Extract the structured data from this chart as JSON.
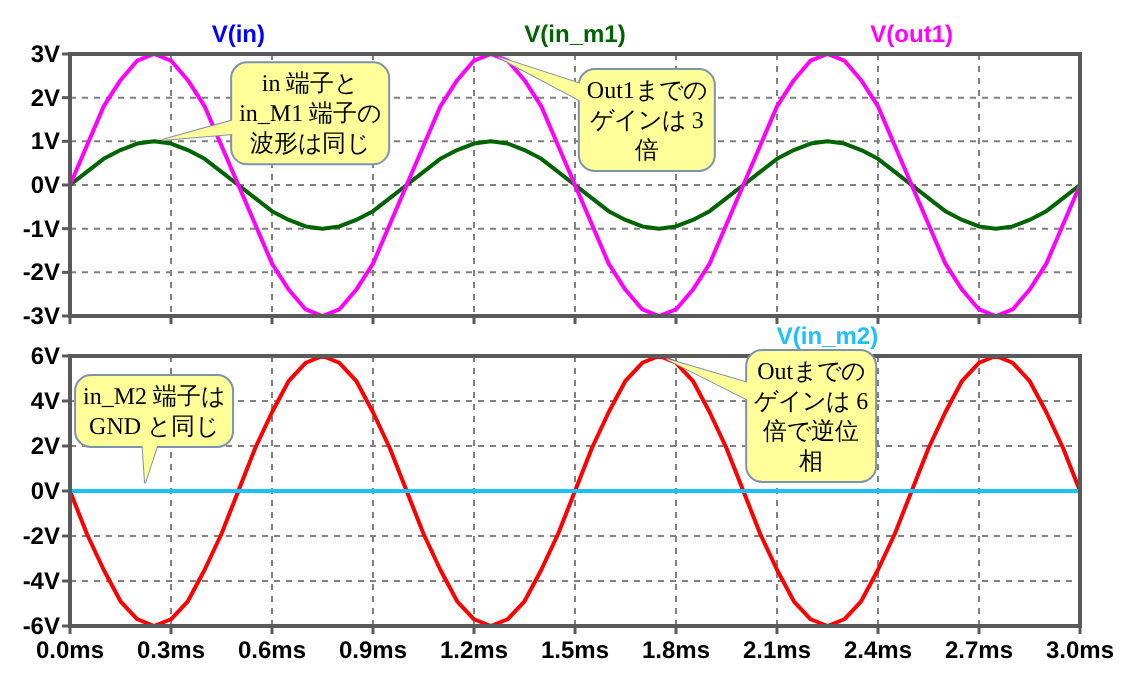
{
  "chart_data": [
    {
      "type": "line",
      "legend": "top",
      "grid": true,
      "tick_labels": "y",
      "x": [
        0,
        0.05,
        0.1,
        0.15,
        0.2,
        0.25,
        0.3,
        0.35,
        0.4,
        0.45,
        0.5,
        0.55,
        0.6,
        0.65,
        0.7,
        0.75,
        0.8,
        0.85,
        0.9,
        0.95,
        1,
        1.05,
        1.1,
        1.15,
        1.2,
        1.25,
        1.3,
        1.35,
        1.4,
        1.45,
        1.5,
        1.55,
        1.6,
        1.65,
        1.7,
        1.75,
        1.8,
        1.85,
        1.9,
        1.95,
        2,
        2.05,
        2.1,
        2.15,
        2.2,
        2.25,
        2.3,
        2.35,
        2.4,
        2.45,
        2.5,
        2.55,
        2.6,
        2.65,
        2.7,
        2.75,
        2.8,
        2.85,
        2.9,
        2.95,
        3
      ],
      "xlim": [
        0,
        3
      ],
      "xticks": [
        0,
        0.3,
        0.6,
        0.9,
        1.2,
        1.5,
        1.8,
        2.1,
        2.4,
        2.7,
        3
      ],
      "ylim": [
        -3,
        3
      ],
      "yticks": [
        {
          "value": -3,
          "label": "-3V"
        },
        {
          "value": -2,
          "label": "-2V"
        },
        {
          "value": -1,
          "label": "-1V"
        },
        {
          "value": 0,
          "label": "0V"
        },
        {
          "value": 1,
          "label": "1V"
        },
        {
          "value": 2,
          "label": "2V"
        },
        {
          "value": 3,
          "label": "3V"
        }
      ],
      "series": [
        {
          "name": "V(in)",
          "color": "#0000ff",
          "values": [
            null,
            null,
            null,
            null,
            null,
            null,
            null,
            null,
            null,
            null,
            null,
            null,
            null,
            null,
            null,
            null,
            null,
            null,
            null,
            null,
            null,
            null,
            null,
            null,
            null,
            null,
            null,
            null,
            null,
            null,
            null,
            null,
            null,
            null,
            null,
            null,
            null,
            null,
            null,
            null,
            null,
            null,
            null,
            null,
            null,
            null,
            null,
            null,
            null,
            null,
            null,
            null,
            null,
            null,
            null,
            null,
            null,
            null,
            null,
            null,
            null
          ]
        },
        {
          "name": "V(in_m1)",
          "color": "#006400",
          "values": [
            0,
            0.3,
            0.6,
            0.8,
            0.95,
            1,
            0.95,
            0.8,
            0.6,
            0.3,
            0,
            -0.3,
            -0.6,
            -0.8,
            -0.95,
            -1,
            -0.95,
            -0.8,
            -0.6,
            -0.3,
            0,
            0.3,
            0.6,
            0.8,
            0.95,
            1,
            0.95,
            0.8,
            0.6,
            0.3,
            0,
            -0.3,
            -0.6,
            -0.8,
            -0.95,
            -1,
            -0.95,
            -0.8,
            -0.6,
            -0.3,
            0,
            0.3,
            0.6,
            0.8,
            0.95,
            1,
            0.95,
            0.8,
            0.6,
            0.3,
            0,
            -0.3,
            -0.6,
            -0.8,
            -0.95,
            -1,
            -0.95,
            -0.8,
            -0.6,
            -0.3,
            0
          ]
        },
        {
          "name": "V(out1)",
          "color": "#ff00ff",
          "values": [
            0,
            0.9,
            1.8,
            2.4,
            2.85,
            3,
            2.85,
            2.4,
            1.8,
            0.9,
            0,
            -0.9,
            -1.8,
            -2.4,
            -2.85,
            -3,
            -2.85,
            -2.4,
            -1.8,
            -0.9,
            0,
            0.9,
            1.8,
            2.4,
            2.85,
            3,
            2.85,
            2.4,
            1.8,
            0.9,
            0,
            -0.9,
            -1.8,
            -2.4,
            -2.85,
            -3,
            -2.85,
            -2.4,
            -1.8,
            -0.9,
            0,
            0.9,
            1.8,
            2.4,
            2.85,
            3,
            2.85,
            2.4,
            1.8,
            0.9,
            0,
            -0.9,
            -1.8,
            -2.4,
            -2.85,
            -3,
            -2.85,
            -2.4,
            -1.8,
            -0.9,
            0
          ]
        }
      ],
      "annotations": [
        {
          "text": "Out1までのゲインは 3倍",
          "x": 1.25,
          "y": 3
        },
        {
          "text": "in 端子とin_M1 端子の波形は同じ",
          "x": 0.25,
          "y": 1
        }
      ]
    },
    {
      "type": "line",
      "legend": "top",
      "grid": true,
      "x": [
        0,
        0.05,
        0.1,
        0.15,
        0.2,
        0.25,
        0.3,
        0.35,
        0.4,
        0.45,
        0.5,
        0.55,
        0.6,
        0.65,
        0.7,
        0.75,
        0.8,
        0.85,
        0.9,
        0.95,
        1,
        1.05,
        1.1,
        1.15,
        1.2,
        1.25,
        1.3,
        1.35,
        1.4,
        1.45,
        1.5,
        1.55,
        1.6,
        1.65,
        1.7,
        1.75,
        1.8,
        1.85,
        1.9,
        1.95,
        2,
        2.05,
        2.1,
        2.15,
        2.2,
        2.25,
        2.3,
        2.35,
        2.4,
        2.45,
        2.5,
        2.55,
        2.6,
        2.65,
        2.7,
        2.75,
        2.8,
        2.85,
        2.9,
        2.95,
        3
      ],
      "xlim": [
        0,
        3
      ],
      "xticks": [
        {
          "value": 0,
          "label": "0.0ms"
        },
        {
          "value": 0.3,
          "label": "0.3ms"
        },
        {
          "value": 0.6,
          "label": "0.6ms"
        },
        {
          "value": 0.9,
          "label": "0.9ms"
        },
        {
          "value": 1.2,
          "label": "1.2ms"
        },
        {
          "value": 1.5,
          "label": "1.5ms"
        },
        {
          "value": 1.8,
          "label": "1.8ms"
        },
        {
          "value": 2.1,
          "label": "2.1ms"
        },
        {
          "value": 2.4,
          "label": "2.4ms"
        },
        {
          "value": 2.7,
          "label": "2.7ms"
        },
        {
          "value": 3,
          "label": "3.0ms"
        }
      ],
      "ylim": [
        -6,
        6
      ],
      "yticks": [
        {
          "value": -6,
          "label": "-6V"
        },
        {
          "value": -4,
          "label": "-4V"
        },
        {
          "value": -2,
          "label": "-2V"
        },
        {
          "value": 0,
          "label": "0V"
        },
        {
          "value": 2,
          "label": "2V"
        },
        {
          "value": 4,
          "label": "4V"
        },
        {
          "value": 6,
          "label": "6V"
        }
      ],
      "series": [
        {
          "color": "#ff0000",
          "values": [
            0,
            -1.9,
            -3.5,
            -4.9,
            -5.7,
            -6,
            -5.7,
            -4.9,
            -3.5,
            -1.9,
            0,
            1.9,
            3.5,
            4.9,
            5.7,
            6,
            5.7,
            4.9,
            3.5,
            1.9,
            0,
            -1.9,
            -3.5,
            -4.9,
            -5.7,
            -6,
            -5.7,
            -4.9,
            -3.5,
            -1.9,
            0,
            1.9,
            3.5,
            4.9,
            5.7,
            6,
            5.7,
            4.9,
            3.5,
            1.9,
            0,
            -1.9,
            -3.5,
            -4.9,
            -5.7,
            -6,
            -5.7,
            -4.9,
            -3.5,
            -1.9,
            0,
            1.9,
            3.5,
            4.9,
            5.7,
            6,
            5.7,
            4.9,
            3.5,
            1.9,
            0
          ]
        },
        {
          "name": "V(in_m2)",
          "color": "#1ebfff",
          "values": [
            0,
            0,
            0,
            0,
            0,
            0,
            0,
            0,
            0,
            0,
            0,
            0,
            0,
            0,
            0,
            0,
            0,
            0,
            0,
            0,
            0,
            0,
            0,
            0,
            0,
            0,
            0,
            0,
            0,
            0,
            0,
            0,
            0,
            0,
            0,
            0,
            0,
            0,
            0,
            0,
            0,
            0,
            0,
            0,
            0,
            0,
            0,
            0,
            0,
            0,
            0,
            0,
            0,
            0,
            0,
            0,
            0,
            0,
            0,
            0,
            0
          ]
        }
      ],
      "annotations": [
        {
          "text": "in_M2 端子はGND と同じ",
          "x": 0.22,
          "y": 0
        },
        {
          "text": "Outまでのゲインは 6倍で逆位相",
          "x": 1.75,
          "y": 6
        }
      ]
    }
  ]
}
